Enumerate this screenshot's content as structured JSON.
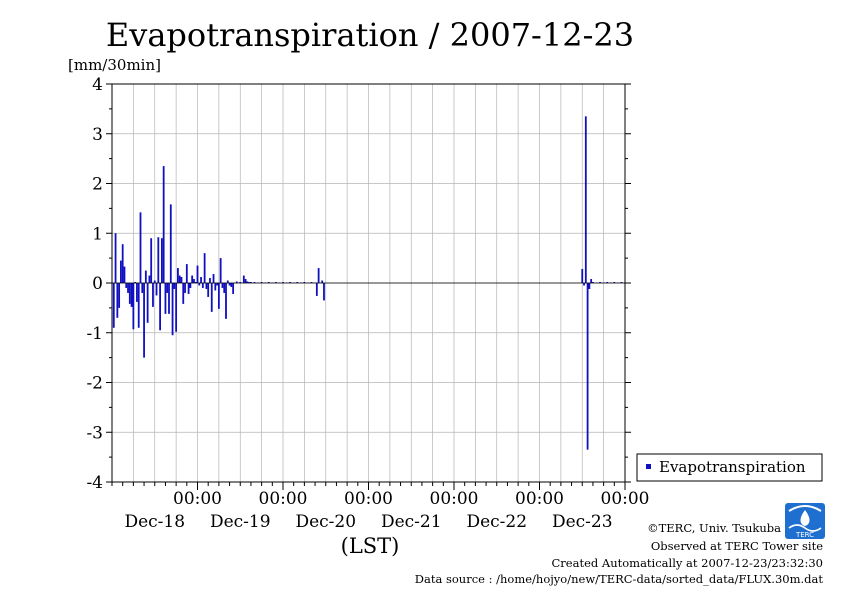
{
  "chart_data": {
    "type": "bar",
    "title": "Evapotranspiration / 2007-12-23",
    "ylabel_unit": "[mm/30min]",
    "xlabel": "(LST)",
    "ylim": [
      -4,
      4
    ],
    "yticks": [
      "4",
      "3",
      "2",
      "1",
      "0",
      "-1",
      "-2",
      "-3",
      "-4"
    ],
    "x_range_hours": [
      0,
      144
    ],
    "x_day_ticks": [
      {
        "time": "00:00",
        "date": "Dec-18"
      },
      {
        "time": "00:00",
        "date": "Dec-19"
      },
      {
        "time": "00:00",
        "date": "Dec-20"
      },
      {
        "time": "00:00",
        "date": "Dec-21"
      },
      {
        "time": "00:00",
        "date": "Dec-22"
      },
      {
        "time": "00:00",
        "date": "Dec-23"
      }
    ],
    "grid": true,
    "legend_position": "right",
    "series": [
      {
        "name": "Evapotranspiration",
        "color": "#1010c0",
        "points": [
          [
            0.5,
            -0.9
          ],
          [
            1,
            1.0
          ],
          [
            1.5,
            -0.7
          ],
          [
            2,
            -0.5
          ],
          [
            2.5,
            0.45
          ],
          [
            3,
            0.78
          ],
          [
            3.5,
            0.33
          ],
          [
            4,
            -0.1
          ],
          [
            4.5,
            -0.2
          ],
          [
            5,
            -0.42
          ],
          [
            5.5,
            -0.48
          ],
          [
            6,
            -0.93
          ],
          [
            6.5,
            0.02
          ],
          [
            7,
            -0.38
          ],
          [
            7.5,
            -0.9
          ],
          [
            8,
            1.42
          ],
          [
            8.5,
            -0.2
          ],
          [
            9,
            -1.5
          ],
          [
            9.5,
            0.25
          ],
          [
            10,
            -0.8
          ],
          [
            10.5,
            0.15
          ],
          [
            11,
            0.9
          ],
          [
            11.5,
            -0.48
          ],
          [
            12,
            0.05
          ],
          [
            12.5,
            -0.25
          ],
          [
            13,
            0.92
          ],
          [
            13.5,
            -0.95
          ],
          [
            14,
            0.9
          ],
          [
            14.5,
            2.35
          ],
          [
            15,
            -0.62
          ],
          [
            15.5,
            -0.2
          ],
          [
            16,
            -0.62
          ],
          [
            16.5,
            1.58
          ],
          [
            17,
            -1.05
          ],
          [
            17.5,
            -0.12
          ],
          [
            18,
            -0.98
          ],
          [
            18.5,
            0.3
          ],
          [
            19,
            0.15
          ],
          [
            19.5,
            0.12
          ],
          [
            20,
            -0.42
          ],
          [
            20.5,
            -0.2
          ],
          [
            21,
            0.38
          ],
          [
            21.5,
            -0.22
          ],
          [
            22,
            -0.1
          ],
          [
            22.5,
            0.15
          ],
          [
            23,
            0.08
          ],
          [
            23.5,
            0.02
          ],
          [
            24,
            0.35
          ],
          [
            24.5,
            -0.05
          ],
          [
            25,
            0.12
          ],
          [
            25.5,
            -0.1
          ],
          [
            26,
            0.6
          ],
          [
            26.5,
            -0.12
          ],
          [
            27,
            -0.28
          ],
          [
            27.5,
            0.1
          ],
          [
            28,
            -0.58
          ],
          [
            28.5,
            0.18
          ],
          [
            29,
            -0.15
          ],
          [
            29.5,
            -0.05
          ],
          [
            30,
            -0.52
          ],
          [
            30.5,
            0.5
          ],
          [
            31,
            -0.1
          ],
          [
            31.5,
            -0.2
          ],
          [
            32,
            -0.72
          ],
          [
            32.5,
            0.05
          ],
          [
            33,
            -0.05
          ],
          [
            33.5,
            -0.08
          ],
          [
            34,
            -0.22
          ],
          [
            35,
            0.03
          ],
          [
            36,
            0.02
          ],
          [
            37,
            0.15
          ],
          [
            37.5,
            0.08
          ],
          [
            38,
            0.03
          ],
          [
            38.5,
            0.02
          ],
          [
            39,
            0.02
          ],
          [
            40,
            0.02
          ],
          [
            41,
            0.01
          ],
          [
            42,
            0.02
          ],
          [
            43,
            0.01
          ],
          [
            44,
            0.02
          ],
          [
            45,
            0.01
          ],
          [
            46,
            0.02
          ],
          [
            47,
            0.01
          ],
          [
            48,
            0.02
          ],
          [
            49,
            0.01
          ],
          [
            50,
            0.02
          ],
          [
            51,
            0.01
          ],
          [
            52,
            0.02
          ],
          [
            53,
            0.01
          ],
          [
            54,
            0.02
          ],
          [
            55,
            0.01
          ],
          [
            56,
            0.02
          ],
          [
            57,
            0.01
          ],
          [
            57.5,
            -0.26
          ],
          [
            58,
            0.3
          ],
          [
            59,
            0.05
          ],
          [
            59.5,
            -0.35
          ],
          [
            132,
            0.28
          ],
          [
            132.5,
            -0.05
          ],
          [
            133,
            3.35
          ],
          [
            133.5,
            -3.35
          ],
          [
            134,
            -0.12
          ],
          [
            134.5,
            0.08
          ],
          [
            135,
            0.02
          ],
          [
            136,
            0.01
          ],
          [
            137,
            0.02
          ],
          [
            138,
            0.01
          ],
          [
            139,
            0.02
          ],
          [
            140,
            0.01
          ],
          [
            141,
            0.02
          ],
          [
            142,
            0.01
          ],
          [
            143,
            0.02
          ],
          [
            144,
            0.01
          ]
        ]
      }
    ]
  },
  "credits": {
    "copyright": "©TERC, Univ. Tsukuba",
    "observed": "Observed at TERC Tower site",
    "created": "Created Automatically at 2007-12-23/23:32:30",
    "source": "Data source : /home/hojyo/new/TERC-data/sorted_data/FLUX.30m.dat",
    "logo_text": "TERC"
  }
}
